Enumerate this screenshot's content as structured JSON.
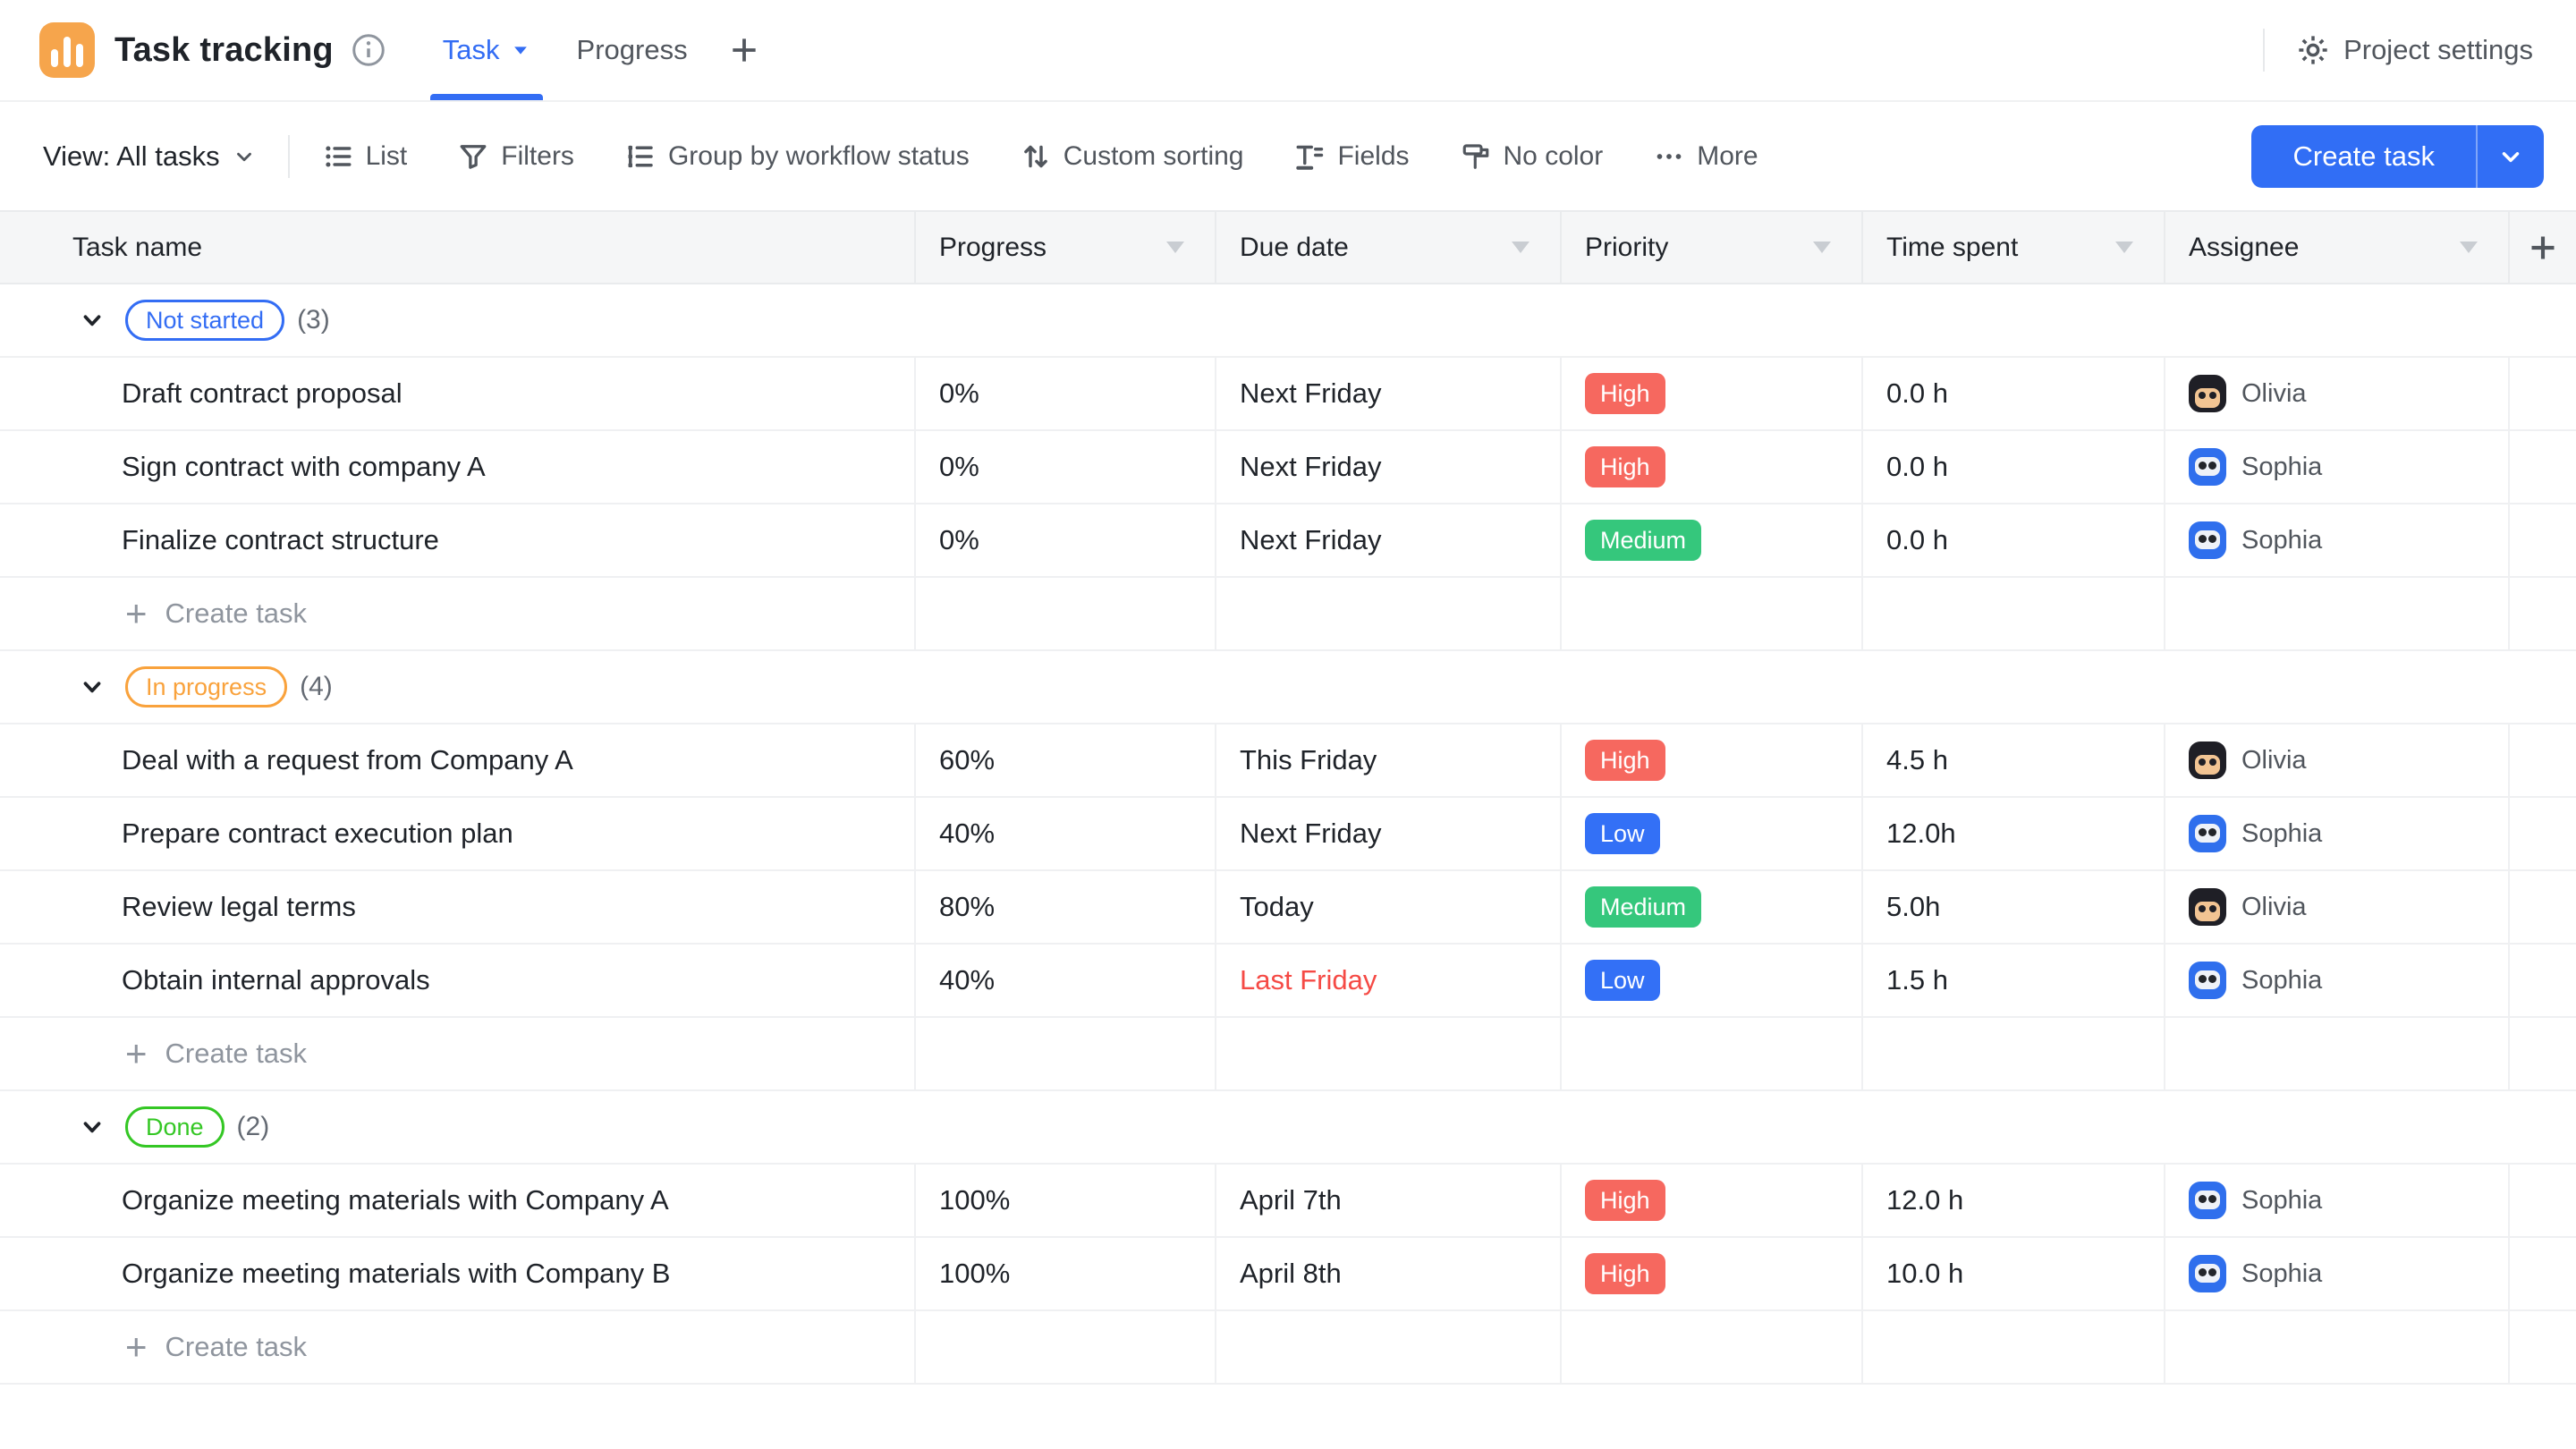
{
  "topbar": {
    "app_title": "Task tracking",
    "tabs": [
      {
        "label": "Task",
        "active": true
      },
      {
        "label": "Progress",
        "active": false
      }
    ],
    "add_tab_label": "+",
    "project_settings_label": "Project settings"
  },
  "toolbar": {
    "view_switcher_label": "View: All tasks",
    "items": [
      {
        "label": "List",
        "icon": "list-icon"
      },
      {
        "label": "Filters",
        "icon": "filter-icon"
      },
      {
        "label": "Group by workflow status",
        "icon": "group-icon"
      },
      {
        "label": "Custom sorting",
        "icon": "sort-icon"
      },
      {
        "label": "Fields",
        "icon": "fields-icon"
      },
      {
        "label": "No color",
        "icon": "paint-roller-icon"
      },
      {
        "label": "More",
        "icon": "more-icon"
      }
    ],
    "create_task_label": "Create task"
  },
  "table": {
    "columns": [
      "Task name",
      "Progress",
      "Due date",
      "Priority",
      "Time spent",
      "Assignee"
    ],
    "add_column_label": "+",
    "groups": [
      {
        "status": "Not started",
        "count": "(3)",
        "status_color": "#336df4",
        "rows": [
          {
            "name": "Draft contract proposal",
            "progress": "0%",
            "due": "Next Friday",
            "overdue": false,
            "priority": "High",
            "time": "0.0 h",
            "assignee": "Olivia"
          },
          {
            "name": "Sign contract with company A",
            "progress": "0%",
            "due": "Next Friday",
            "overdue": false,
            "priority": "High",
            "time": "0.0 h",
            "assignee": "Sophia"
          },
          {
            "name": "Finalize contract structure",
            "progress": "0%",
            "due": "Next Friday",
            "overdue": false,
            "priority": "Medium",
            "time": "0.0 h",
            "assignee": "Sophia"
          }
        ],
        "create_task_label": "Create task"
      },
      {
        "status": "In progress",
        "count": "(4)",
        "status_color": "#f9a23c",
        "rows": [
          {
            "name": "Deal with a request from Company A",
            "progress": "60%",
            "due": "This Friday",
            "overdue": false,
            "priority": "High",
            "time": "4.5 h",
            "assignee": "Olivia"
          },
          {
            "name": "Prepare contract execution plan",
            "progress": "40%",
            "due": "Next Friday",
            "overdue": false,
            "priority": "Low",
            "time": "12.0h",
            "assignee": "Sophia"
          },
          {
            "name": "Review legal terms",
            "progress": "80%",
            "due": "Today",
            "overdue": false,
            "priority": "Medium",
            "time": "5.0h",
            "assignee": "Olivia"
          },
          {
            "name": "Obtain internal approvals",
            "progress": "40%",
            "due": "Last Friday",
            "overdue": true,
            "priority": "Low",
            "time": "1.5 h",
            "assignee": "Sophia"
          }
        ],
        "create_task_label": "Create task"
      },
      {
        "status": "Done",
        "count": "(2)",
        "status_color": "#34c724",
        "rows": [
          {
            "name": "Organize meeting materials with Company A",
            "progress": "100%",
            "due": "April 7th",
            "overdue": false,
            "priority": "High",
            "time": "12.0 h",
            "assignee": "Sophia"
          },
          {
            "name": "Organize meeting materials with Company B",
            "progress": "100%",
            "due": "April 8th",
            "overdue": false,
            "priority": "High",
            "time": "10.0 h",
            "assignee": "Sophia"
          }
        ],
        "create_task_label": "Create task"
      }
    ]
  },
  "colors": {
    "accent_blue": "#336df4",
    "logo_orange": "#f6a54c",
    "priority_high": "#f6685f",
    "priority_medium": "#35c77c",
    "priority_low": "#3370f6",
    "overdue_red": "#f54a45",
    "avatar_olivia": "#1f1f26",
    "avatar_sophia": "#2f6fed"
  }
}
